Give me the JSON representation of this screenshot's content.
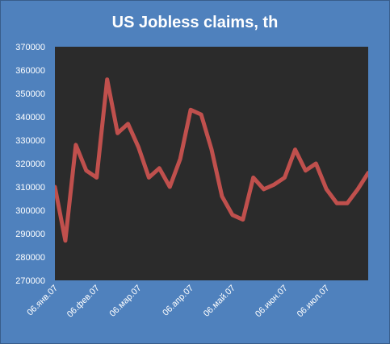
{
  "colors": {
    "outer_background": "#4F81BD",
    "plot_background": "#2B2B2B",
    "series_line": "#C0504D",
    "text": "#FFFFFF",
    "outer_border": "#385D8A"
  },
  "chart_data": {
    "type": "line",
    "title": "US Jobless claims, th",
    "xlabel": "",
    "ylabel": "",
    "ylim": [
      270000,
      370000
    ],
    "y_ticks": [
      270000,
      280000,
      290000,
      300000,
      310000,
      320000,
      330000,
      340000,
      350000,
      360000,
      370000
    ],
    "y_tick_labels": [
      "270000",
      "280000",
      "290000",
      "300000",
      "310000",
      "320000",
      "330000",
      "340000",
      "350000",
      "360000",
      "370000"
    ],
    "x_tick_labels": [
      "06.янв.07",
      "06.фев.07",
      "06.мар.07",
      "06.апр.07",
      "06.май.07",
      "06.июн.07",
      "06.июл.07"
    ],
    "x_tick_indices": [
      0,
      4,
      8,
      13,
      17,
      22,
      26
    ],
    "grid": false,
    "legend": "none",
    "series": [
      {
        "values": [
          310000,
          287000,
          328000,
          317000,
          314000,
          356000,
          333000,
          337000,
          327000,
          314000,
          318000,
          310000,
          322000,
          343000,
          341000,
          326000,
          306000,
          298000,
          296000,
          314000,
          309000,
          311000,
          314000,
          326000,
          317000,
          320000,
          309000,
          303000,
          303000,
          309000,
          316000
        ]
      }
    ]
  }
}
